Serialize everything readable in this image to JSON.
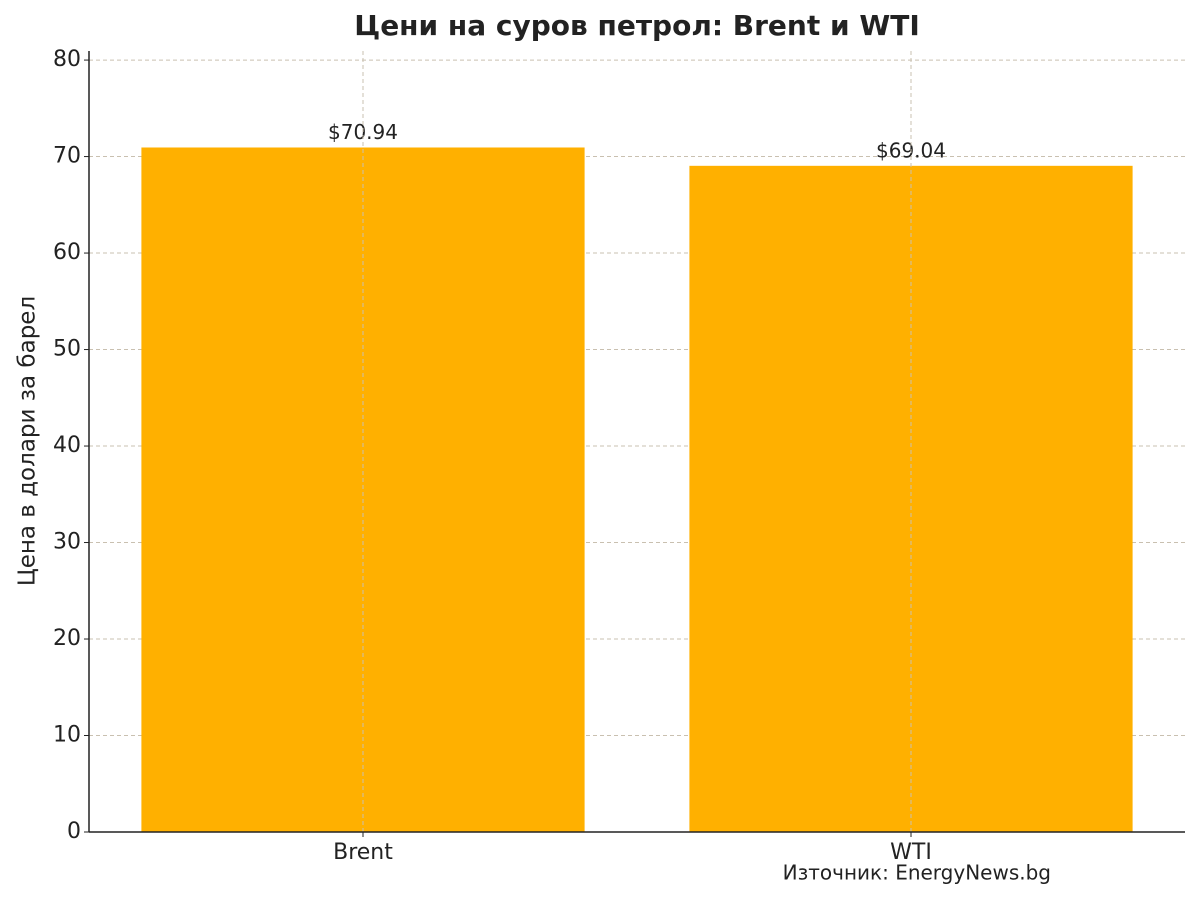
{
  "chart_data": {
    "type": "bar",
    "title": "Цени на суров петрол: Brent и WTI",
    "y_label": "Цена в долари за барел",
    "categories": [
      "Brent",
      "WTI"
    ],
    "values": [
      70.94,
      69.04
    ],
    "value_labels": [
      "$70.94",
      "$69.04"
    ],
    "color": "#ffb000",
    "ylim": [
      0,
      80.94
    ],
    "yticks": [
      0,
      10,
      20,
      30,
      40,
      50,
      60,
      70,
      80
    ],
    "grid": true,
    "source": "Източник: EnergyNews.bg"
  }
}
